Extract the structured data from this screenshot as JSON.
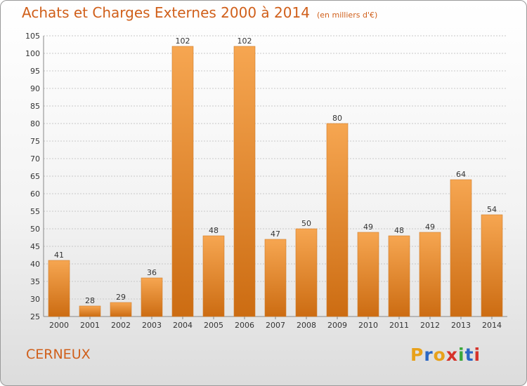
{
  "chart_data": {
    "type": "bar",
    "title": "Achats et Charges Externes 2000 à 2014",
    "subtitle": "(en milliers d'€)",
    "categories": [
      "2000",
      "2001",
      "2002",
      "2003",
      "2004",
      "2005",
      "2006",
      "2007",
      "2008",
      "2009",
      "2010",
      "2011",
      "2012",
      "2013",
      "2014"
    ],
    "values": [
      41,
      28,
      29,
      36,
      102,
      48,
      102,
      47,
      50,
      80,
      49,
      48,
      49,
      64,
      54
    ],
    "ylim": [
      25,
      105
    ],
    "yticks": [
      25,
      30,
      35,
      40,
      45,
      50,
      55,
      60,
      65,
      70,
      75,
      80,
      85,
      90,
      95,
      100,
      105
    ],
    "xlabel": "",
    "ylabel": "",
    "grid": true,
    "bar_color_light": "#f6a651",
    "bar_color_dark": "#cc6c12"
  },
  "footer": {
    "commune": "CERNEUX",
    "logo": "Proxiti",
    "logo_colors": [
      "#e8a11a",
      "#2b67c4",
      "#e8a11a",
      "#d6332a",
      "#3aa83a",
      "#2b67c4",
      "#d6332a"
    ]
  }
}
